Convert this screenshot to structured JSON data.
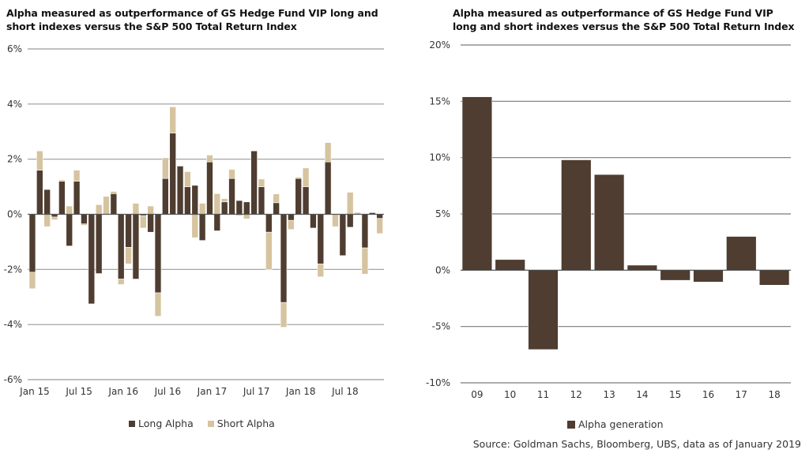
{
  "chart_data": [
    {
      "type": "bar",
      "stacked": true,
      "title": "Alpha measured as outperformance of GS Hedge Fund VIP long and short indexes versus the S&P 500 Total Return Index",
      "xlabel": "",
      "ylabel": "",
      "ylim": [
        -6,
        6
      ],
      "yticks": [
        "6%",
        "4%",
        "2%",
        "0%",
        "-2%",
        "-4%",
        "-6%"
      ],
      "ytick_values": [
        6,
        4,
        2,
        0,
        -2,
        -4,
        -6
      ],
      "xtick_labels": [
        "Jan 15",
        "Jul 15",
        "Jan 16",
        "Jul 16",
        "Jan 17",
        "Jul 17",
        "Jan 18",
        "Jul 18"
      ],
      "xtick_indices": [
        0,
        6,
        12,
        18,
        24,
        30,
        36,
        42
      ],
      "grid": true,
      "legend": "bottom",
      "categories": [
        "Jan 15",
        "Feb 15",
        "Mar 15",
        "Apr 15",
        "May 15",
        "Jun 15",
        "Jul 15",
        "Aug 15",
        "Sep 15",
        "Oct 15",
        "Nov 15",
        "Dec 15",
        "Jan 16",
        "Feb 16",
        "Mar 16",
        "Apr 16",
        "May 16",
        "Jun 16",
        "Jul 16",
        "Aug 16",
        "Sep 16",
        "Oct 16",
        "Nov 16",
        "Dec 16",
        "Jan 17",
        "Feb 17",
        "Mar 17",
        "Apr 17",
        "May 17",
        "Jun 17",
        "Jul 17",
        "Aug 17",
        "Sep 17",
        "Oct 17",
        "Nov 17",
        "Dec 17",
        "Jan 18",
        "Feb 18",
        "Mar 18",
        "Apr 18",
        "May 18",
        "Jun 18",
        "Jul 18",
        "Aug 18",
        "Sep 18",
        "Oct 18",
        "Nov 18",
        "Dec 18"
      ],
      "series": [
        {
          "name": "Long Alpha",
          "color": "#4e3d30",
          "values": [
            -2.1,
            1.6,
            0.9,
            -0.1,
            1.2,
            -1.15,
            1.2,
            -0.35,
            -3.25,
            -2.15,
            0.0,
            0.75,
            -2.35,
            -1.2,
            -2.35,
            -0.05,
            -0.65,
            -2.85,
            1.3,
            2.95,
            1.75,
            1.0,
            1.05,
            -0.95,
            1.9,
            -0.6,
            0.45,
            1.3,
            0.5,
            0.45,
            2.3,
            1.0,
            -0.65,
            0.42,
            -3.2,
            -0.22,
            1.3,
            1.0,
            -0.5,
            -1.8,
            1.9,
            0.0,
            -1.5,
            -0.47,
            0.0,
            -1.22,
            0.06,
            -0.15
          ]
        },
        {
          "name": "Short Alpha",
          "color": "#d6c4a0",
          "values": [
            -0.6,
            0.7,
            -0.45,
            -0.1,
            0.05,
            0.3,
            0.4,
            -0.05,
            0.0,
            0.35,
            0.65,
            0.08,
            -0.2,
            -0.6,
            0.4,
            -0.45,
            0.3,
            -0.85,
            0.75,
            0.95,
            0.0,
            0.55,
            -0.85,
            0.4,
            0.25,
            0.75,
            0.12,
            0.33,
            -0.05,
            -0.17,
            0.0,
            0.28,
            -1.35,
            0.32,
            -0.9,
            -0.33,
            0.05,
            0.68,
            0.0,
            -0.47,
            0.7,
            -0.45,
            0.0,
            0.8,
            0.07,
            -0.95,
            0.0,
            -0.55
          ]
        }
      ]
    },
    {
      "type": "bar",
      "title": "Alpha measured as outperformance of GS Hedge Fund VIP long and short indexes versus the S&P 500 Total Return Index",
      "xlabel": "",
      "ylabel": "",
      "ylim": [
        -10,
        20
      ],
      "yticks": [
        "20%",
        "15%",
        "10%",
        "5%",
        "0%",
        "-5%",
        "-10%"
      ],
      "ytick_values": [
        20,
        15,
        10,
        5,
        0,
        -5,
        -10
      ],
      "grid": true,
      "legend": "bottom",
      "categories": [
        "09",
        "10",
        "11",
        "12",
        "13",
        "14",
        "15",
        "16",
        "17",
        "18"
      ],
      "series": [
        {
          "name": "Alpha generation",
          "color": "#4e3d30",
          "values": [
            15.4,
            0.95,
            -7.05,
            9.8,
            8.5,
            0.45,
            -0.9,
            -1.05,
            3.0,
            -1.33
          ]
        }
      ]
    }
  ],
  "titles": {
    "left": "Alpha measured as outperformance of GS Hedge Fund VIP long and short indexes versus the S&P 500 Total Return Index",
    "right": "Alpha measured as outperformance of GS Hedge Fund VIP long and short indexes versus the S&P 500 Total Return Index"
  },
  "legends": {
    "left": [
      {
        "label": "Long Alpha",
        "color": "#4e3d30"
      },
      {
        "label": "Short Alpha",
        "color": "#d6c4a0"
      }
    ],
    "right": [
      {
        "label": "Alpha generation",
        "color": "#4e3d30"
      }
    ]
  },
  "source": "Source: Goldman Sachs, Bloomberg, UBS, data as of January 2019"
}
